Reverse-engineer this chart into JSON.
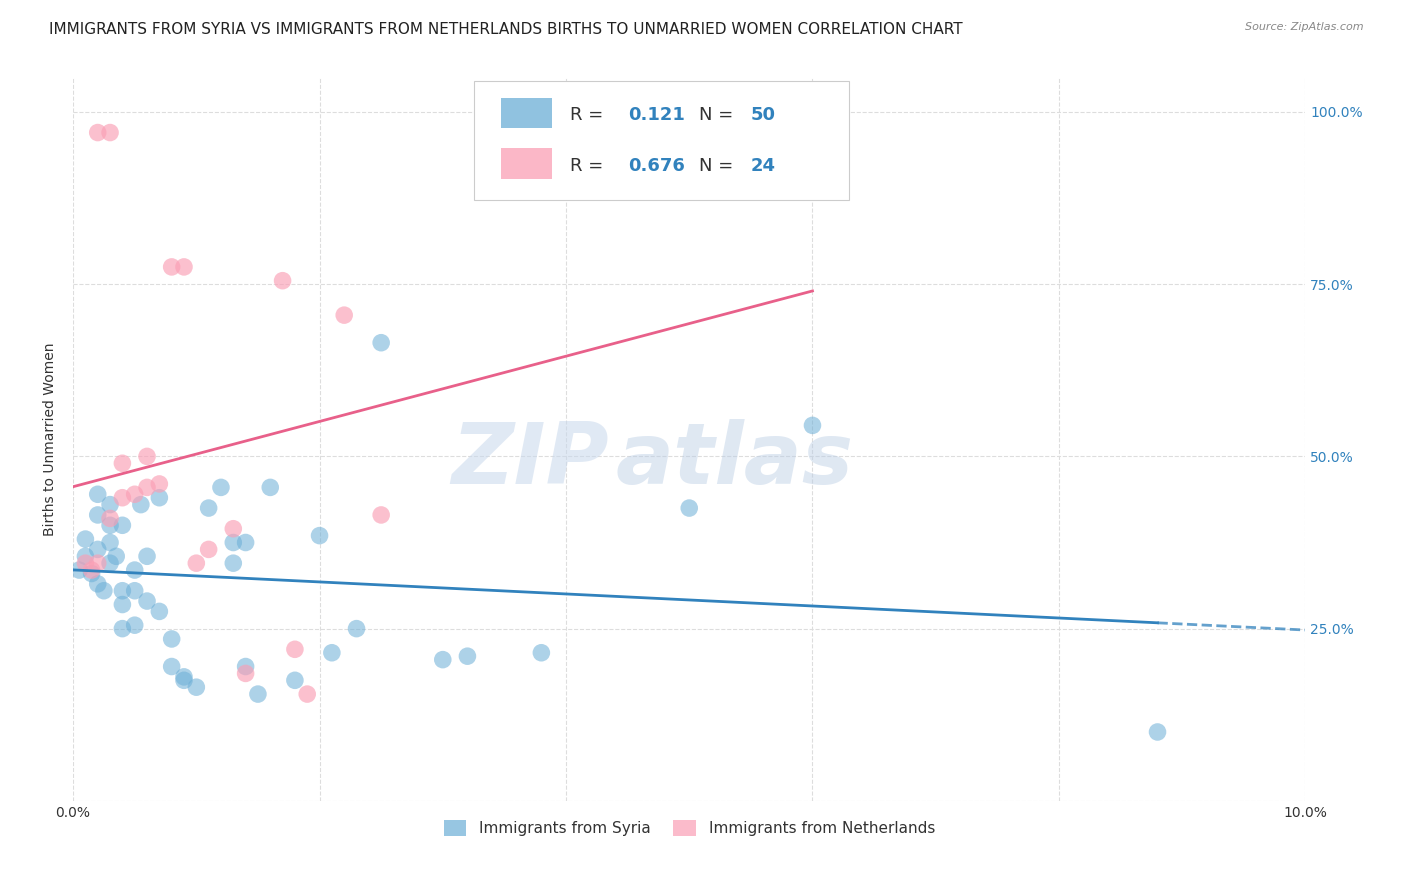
{
  "title": "IMMIGRANTS FROM SYRIA VS IMMIGRANTS FROM NETHERLANDS BIRTHS TO UNMARRIED WOMEN CORRELATION CHART",
  "source": "Source: ZipAtlas.com",
  "xlabel": "",
  "ylabel": "Births to Unmarried Women",
  "legend_label_1": "Immigrants from Syria",
  "legend_label_2": "Immigrants from Netherlands",
  "r1": "0.121",
  "n1": "50",
  "r2": "0.676",
  "n2": "24",
  "color1": "#6baed6",
  "color2": "#fa9fb5",
  "trendline1_color": "#3182bd",
  "trendline2_color": "#e8608a",
  "xmin": 0.0,
  "xmax": 0.1,
  "ymin": 0.0,
  "ymax": 1.05,
  "xticks": [
    0.0,
    0.02,
    0.04,
    0.06,
    0.08,
    0.1
  ],
  "xtick_labels": [
    "0.0%",
    "",
    "",
    "",
    "",
    "10.0%"
  ],
  "yticks": [
    0.0,
    0.25,
    0.5,
    0.75,
    1.0
  ],
  "ytick_labels_right": [
    "",
    "25.0%",
    "50.0%",
    "75.0%",
    "100.0%"
  ],
  "syria_x": [
    0.0005,
    0.001,
    0.001,
    0.0015,
    0.002,
    0.002,
    0.002,
    0.002,
    0.0025,
    0.003,
    0.003,
    0.003,
    0.003,
    0.0035,
    0.004,
    0.004,
    0.004,
    0.004,
    0.005,
    0.005,
    0.005,
    0.0055,
    0.006,
    0.006,
    0.007,
    0.007,
    0.008,
    0.008,
    0.009,
    0.009,
    0.01,
    0.011,
    0.012,
    0.013,
    0.013,
    0.014,
    0.014,
    0.015,
    0.016,
    0.018,
    0.02,
    0.021,
    0.023,
    0.025,
    0.03,
    0.032,
    0.038,
    0.05,
    0.06,
    0.088
  ],
  "syria_y": [
    0.335,
    0.355,
    0.38,
    0.33,
    0.315,
    0.365,
    0.415,
    0.445,
    0.305,
    0.345,
    0.375,
    0.4,
    0.43,
    0.355,
    0.25,
    0.285,
    0.305,
    0.4,
    0.255,
    0.305,
    0.335,
    0.43,
    0.29,
    0.355,
    0.275,
    0.44,
    0.195,
    0.235,
    0.175,
    0.18,
    0.165,
    0.425,
    0.455,
    0.345,
    0.375,
    0.195,
    0.375,
    0.155,
    0.455,
    0.175,
    0.385,
    0.215,
    0.25,
    0.665,
    0.205,
    0.21,
    0.215,
    0.425,
    0.545,
    0.1
  ],
  "netherlands_x": [
    0.001,
    0.0015,
    0.002,
    0.002,
    0.003,
    0.003,
    0.004,
    0.004,
    0.005,
    0.006,
    0.006,
    0.007,
    0.008,
    0.009,
    0.01,
    0.011,
    0.013,
    0.014,
    0.017,
    0.018,
    0.019,
    0.022,
    0.025,
    0.06
  ],
  "netherlands_y": [
    0.345,
    0.335,
    0.345,
    0.97,
    0.41,
    0.97,
    0.44,
    0.49,
    0.445,
    0.455,
    0.5,
    0.46,
    0.775,
    0.775,
    0.345,
    0.365,
    0.395,
    0.185,
    0.755,
    0.22,
    0.155,
    0.705,
    0.415,
    0.97
  ],
  "background_color": "#ffffff",
  "grid_color": "#dddddd",
  "watermark_zip": "ZIP",
  "watermark_atlas": "atlas",
  "title_fontsize": 11,
  "axis_label_fontsize": 10,
  "tick_fontsize": 10
}
